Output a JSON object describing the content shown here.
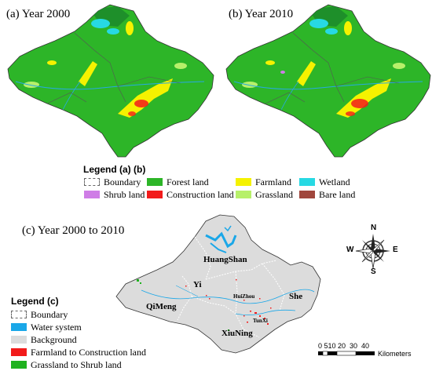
{
  "panels": {
    "a_title": "(a) Year 2000",
    "b_title": "(b) Year 2010",
    "c_title": "(c) Year 2000 to 2010"
  },
  "legend_ab": {
    "heading": "Legend (a) (b)",
    "items": [
      {
        "label": "Boundary",
        "color": "#ffffff"
      },
      {
        "label": "Forest land",
        "color": "#2db528"
      },
      {
        "label": "Farmland",
        "color": "#f5f200"
      },
      {
        "label": "Wetland",
        "color": "#27d9e3"
      },
      {
        "label": "Shrub land",
        "color": "#cf7de6"
      },
      {
        "label": "Construction land",
        "color": "#f21b1b"
      },
      {
        "label": "Grassland",
        "color": "#b7f06a"
      },
      {
        "label": "Bare land",
        "color": "#a0463c"
      }
    ]
  },
  "legend_c": {
    "heading": "Legend (c)",
    "items": [
      {
        "label": "Boundary",
        "color": "#ffffff"
      },
      {
        "label": "Water system",
        "color": "#1aa7e8"
      },
      {
        "label": "Background",
        "color": "#dcdcdc"
      },
      {
        "label": "Farmland to Construction land",
        "color": "#f21b1b"
      },
      {
        "label": "Grassland to Shrub land",
        "color": "#1fb21f"
      }
    ]
  },
  "counties": {
    "huangshan": "HuangShan",
    "yi": "Yi",
    "qimeng": "QiMeng",
    "huizhou": "HuiZhou",
    "she": "She",
    "tunxi": "TunXi",
    "xiuning": "XiuNing"
  },
  "compass": {
    "n": "N",
    "s": "S",
    "e": "E",
    "w": "W"
  },
  "scale": {
    "ticks": "0 510 20  30  40",
    "unit": "Kilometers"
  }
}
